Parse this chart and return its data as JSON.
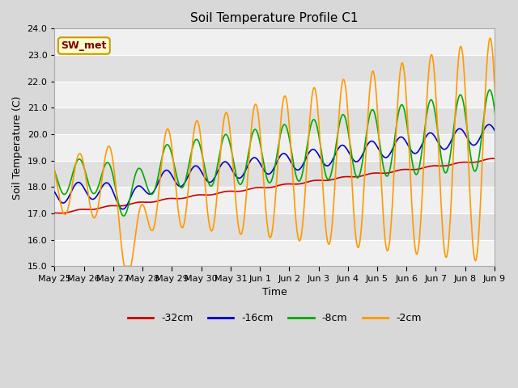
{
  "title": "Soil Temperature Profile C1",
  "xlabel": "Time",
  "ylabel": "Soil Temperature (C)",
  "ylim": [
    15.0,
    24.0
  ],
  "yticks": [
    15.0,
    16.0,
    17.0,
    18.0,
    19.0,
    20.0,
    21.0,
    22.0,
    23.0,
    24.0
  ],
  "series_colors": {
    "-32cm": "#cc0000",
    "-16cm": "#0000cc",
    "-8cm": "#00aa00",
    "-2cm": "#ff9900"
  },
  "annotation_text": "SW_met",
  "annotation_color": "#800000",
  "annotation_bg": "#ffffcc",
  "annotation_border": "#cc9900",
  "fig_bg_color": "#d8d8d8",
  "plot_bg_color": "#e8e8e8",
  "band_color_light": "#f0f0f0",
  "band_color_dark": "#e0e0e0",
  "grid_color": "#d8d8d8",
  "xtick_labels": [
    "May 25",
    "May 26",
    "May 27",
    "May 28",
    "May 29",
    "May 30",
    "May 31",
    "Jun 1",
    "Jun 2",
    "Jun 3",
    "Jun 4",
    "Jun 5",
    "Jun 6",
    "Jun 7",
    "Jun 8",
    "Jun 9"
  ],
  "legend_entries": [
    "-32cm",
    "-16cm",
    "-8cm",
    "-2cm"
  ]
}
